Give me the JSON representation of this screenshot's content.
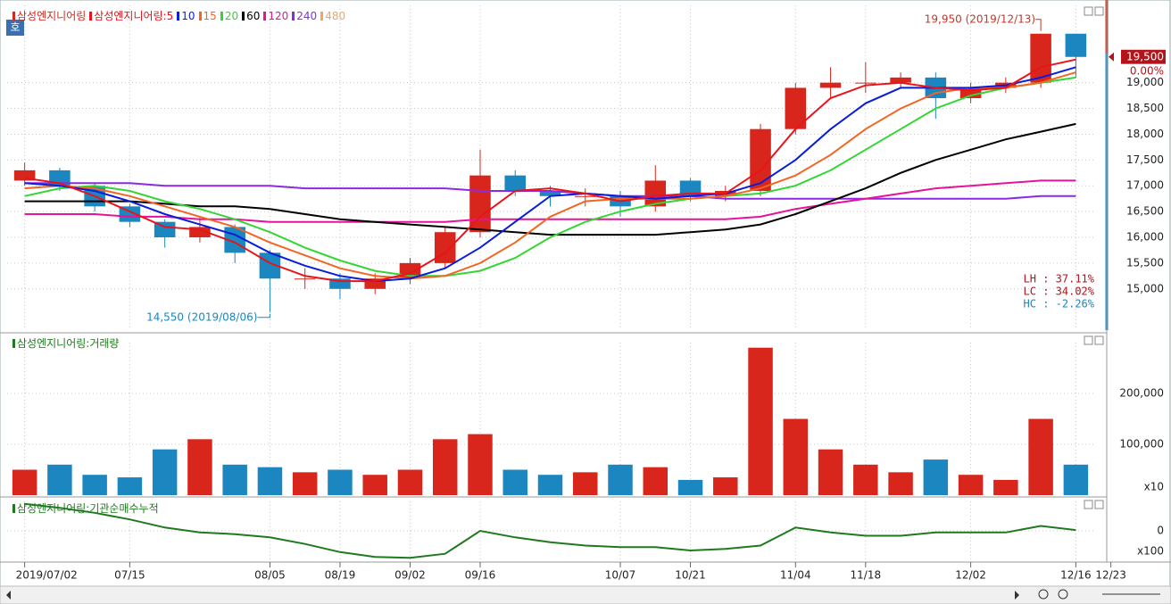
{
  "chart_data": [
    {
      "type": "candlestick",
      "badge": "호",
      "categories": [
        "2019/07/02",
        null,
        null,
        "07/15",
        null,
        null,
        null,
        "08/05",
        null,
        "08/19",
        null,
        "09/02",
        null,
        "09/16",
        null,
        null,
        null,
        "10/07",
        null,
        "10/21",
        null,
        null,
        "11/04",
        null,
        "11/18",
        null,
        null,
        "12/02",
        null,
        null,
        "12/16",
        "12/23"
      ],
      "legend_title": "삼성엔지니어링",
      "up_color": "#d8261c",
      "down_color": "#1b86c0",
      "open": [
        17100,
        17300,
        17000,
        16600,
        16300,
        16000,
        16200,
        15700,
        15200,
        15200,
        15000,
        15200,
        15500,
        16100,
        17200,
        16900,
        16800,
        16800,
        16600,
        17100,
        16800,
        16900,
        18100,
        18900,
        19000,
        19000,
        19100,
        18700,
        18900,
        19000,
        19950,
        null
      ],
      "high": [
        17450,
        17350,
        17050,
        16650,
        16350,
        16400,
        16250,
        15750,
        15400,
        15300,
        15300,
        15600,
        16200,
        17700,
        17300,
        17000,
        16950,
        16900,
        17400,
        17150,
        17000,
        18200,
        19000,
        19300,
        19400,
        19200,
        19200,
        19000,
        19100,
        19950,
        19950,
        null
      ],
      "low": [
        17000,
        16900,
        16500,
        16200,
        15800,
        15900,
        15500,
        14550,
        15000,
        14800,
        14900,
        15100,
        15400,
        16000,
        16800,
        16600,
        16600,
        16400,
        16500,
        16700,
        16700,
        16800,
        18000,
        18700,
        18800,
        18900,
        18300,
        18600,
        18800,
        18900,
        19100,
        null
      ],
      "close": [
        17300,
        17000,
        16600,
        16300,
        16000,
        16200,
        15700,
        15200,
        15200,
        15000,
        15200,
        15500,
        16100,
        17200,
        16900,
        16800,
        16800,
        16600,
        17100,
        16800,
        16900,
        18100,
        18900,
        19000,
        19000,
        19100,
        18700,
        18900,
        19000,
        19950,
        19500,
        null
      ],
      "series": [
        {
          "name": "삼성엔지니어링:5",
          "color": "#e8141b",
          "values": [
            17150,
            17050,
            16800,
            16500,
            16200,
            16150,
            15900,
            15500,
            15250,
            15150,
            15150,
            15300,
            15700,
            16400,
            16900,
            16950,
            16850,
            16700,
            16800,
            16850,
            16850,
            17300,
            18100,
            18700,
            18950,
            19000,
            18900,
            18850,
            18900,
            19300,
            19450,
            null
          ]
        },
        {
          "name": "10",
          "color": "#0a1ed8",
          "values": [
            17050,
            17000,
            16900,
            16700,
            16450,
            16250,
            16050,
            15700,
            15450,
            15250,
            15150,
            15200,
            15400,
            15800,
            16300,
            16800,
            16850,
            16800,
            16750,
            16800,
            16850,
            17050,
            17500,
            18100,
            18600,
            18900,
            18900,
            18900,
            18950,
            19100,
            19300,
            null
          ]
        },
        {
          "name": "15",
          "color": "#f26522",
          "values": [
            16950,
            17000,
            16950,
            16800,
            16600,
            16400,
            16200,
            15900,
            15650,
            15400,
            15250,
            15200,
            15250,
            15500,
            15900,
            16400,
            16700,
            16750,
            16750,
            16750,
            16800,
            16950,
            17200,
            17600,
            18100,
            18500,
            18800,
            18900,
            18900,
            19000,
            19200,
            null
          ]
        },
        {
          "name": "20",
          "color": "#33d633",
          "values": [
            16800,
            16950,
            17000,
            16900,
            16700,
            16550,
            16350,
            16100,
            15800,
            15550,
            15350,
            15250,
            15250,
            15350,
            15600,
            16000,
            16300,
            16500,
            16650,
            16750,
            16800,
            16850,
            17000,
            17300,
            17700,
            18100,
            18500,
            18750,
            18900,
            19000,
            19100,
            null
          ]
        },
        {
          "name": "60",
          "color": "#000000",
          "values": [
            16700,
            16700,
            16700,
            16700,
            16650,
            16600,
            16600,
            16550,
            16450,
            16350,
            16300,
            16250,
            16200,
            16150,
            16100,
            16050,
            16050,
            16050,
            16050,
            16100,
            16150,
            16250,
            16450,
            16700,
            16950,
            17250,
            17500,
            17700,
            17900,
            18050,
            18200,
            null
          ]
        },
        {
          "name": "120",
          "color": "#e6139a",
          "values": [
            16450,
            16450,
            16450,
            16400,
            16400,
            16350,
            16350,
            16300,
            16300,
            16300,
            16300,
            16300,
            16300,
            16350,
            16350,
            16350,
            16350,
            16350,
            16350,
            16350,
            16350,
            16400,
            16550,
            16650,
            16750,
            16850,
            16950,
            17000,
            17050,
            17100,
            17100,
            null
          ]
        },
        {
          "name": "240",
          "color": "#8a2be2",
          "values": [
            17050,
            17050,
            17050,
            17050,
            17000,
            17000,
            17000,
            17000,
            16950,
            16950,
            16950,
            16950,
            16950,
            16900,
            16900,
            16900,
            16850,
            16800,
            16800,
            16800,
            16750,
            16750,
            16750,
            16750,
            16750,
            16750,
            16750,
            16750,
            16750,
            16800,
            16800,
            null
          ]
        },
        {
          "name": "480",
          "color": "#f4a460",
          "values": [
            null,
            null,
            null,
            null,
            null,
            null,
            null,
            null,
            null,
            null,
            null,
            null,
            null,
            null,
            null,
            null,
            null,
            null,
            null,
            null,
            null,
            null,
            null,
            null,
            null,
            null,
            null,
            null,
            null,
            null,
            null,
            null
          ]
        }
      ],
      "ylim": [
        14200,
        20500
      ],
      "yticks": [
        {
          "value": 15000,
          "label": "15,000"
        },
        {
          "value": 15500,
          "label": "15,500"
        },
        {
          "value": 16000,
          "label": "16,000"
        },
        {
          "value": 16500,
          "label": "16,500"
        },
        {
          "value": 17000,
          "label": "17,000"
        },
        {
          "value": 17500,
          "label": "17,500"
        },
        {
          "value": 18000,
          "label": "18,000"
        },
        {
          "value": 18500,
          "label": "18,500"
        },
        {
          "value": 19000,
          "label": "19,000"
        }
      ],
      "max_label": "19,950 (2019/12/13)",
      "min_label": "14,550 (2019/08/06)",
      "last_price": {
        "value": 19500,
        "label": "19,500"
      },
      "change": "0.00%",
      "stats": [
        "LH : 37.11%",
        "LC : 34.02%",
        "HC : -2.26%"
      ]
    },
    {
      "type": "bar",
      "legend_title": "삼성엔지니어링:거래량",
      "unit": "x10",
      "values": [
        50000,
        60000,
        40000,
        35000,
        90000,
        110000,
        60000,
        55000,
        45000,
        50000,
        40000,
        50000,
        110000,
        120000,
        50000,
        40000,
        45000,
        60000,
        55000,
        30000,
        35000,
        290000,
        150000,
        90000,
        60000,
        45000,
        70000,
        40000,
        30000,
        150000,
        60000,
        null
      ],
      "ylim": [
        0,
        300000
      ],
      "yticks": [
        {
          "value": 100000,
          "label": "100,000"
        },
        {
          "value": 200000,
          "label": "200,000"
        }
      ]
    },
    {
      "type": "line",
      "legend_title": "삼성엔지니어링:기관순매수누적",
      "unit": "x100",
      "color": "#1f7a1f",
      "values": [
        1650,
        1400,
        1100,
        700,
        200,
        -100,
        -200,
        -400,
        -800,
        -1300,
        -1600,
        -1650,
        -1400,
        0,
        -400,
        -700,
        -900,
        -1000,
        -1000,
        -1200,
        -1100,
        -900,
        200,
        -100,
        -300,
        -300,
        -100,
        -100,
        -100,
        300,
        50,
        null
      ],
      "ylim": [
        -1800,
        1800
      ],
      "yticks": [
        0
      ]
    }
  ]
}
